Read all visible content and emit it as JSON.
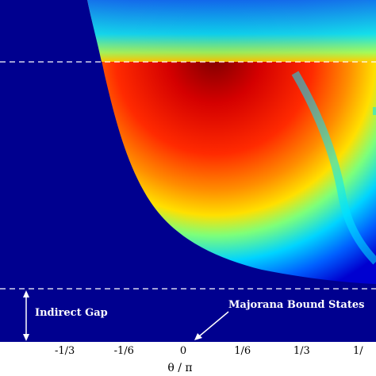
{
  "chart_data": {
    "type": "heatmap",
    "title": "",
    "xlabel": "θ / π",
    "ylabel": "",
    "xlim": [
      -0.5,
      0.5
    ],
    "x_ticks": [
      {
        "value": -0.3333,
        "label": "-1/3"
      },
      {
        "value": -0.1667,
        "label": "-1/6"
      },
      {
        "value": 0,
        "label": "0"
      },
      {
        "value": 0.1667,
        "label": "1/6"
      },
      {
        "value": 0.3333,
        "label": "1/3"
      },
      {
        "value": 0.5,
        "label": "1/"
      }
    ],
    "grid": false,
    "colormap": "jet",
    "background_color": "#00008f",
    "colorbar": false,
    "reference_lines": [
      {
        "style": "dashed",
        "position": "top"
      },
      {
        "style": "dashed",
        "position": "bottom"
      }
    ],
    "annotations": [
      {
        "text": "Indirect Gap",
        "arrow": "double-headed vertical"
      },
      {
        "text": "Majorana Bound States",
        "arrow": "pointing down-left to x = 0"
      }
    ]
  },
  "colors": {
    "background": "#00008f",
    "dashed_line": "#ffffff",
    "annotation_text": "#ffffff",
    "axis_text": "#000000"
  }
}
